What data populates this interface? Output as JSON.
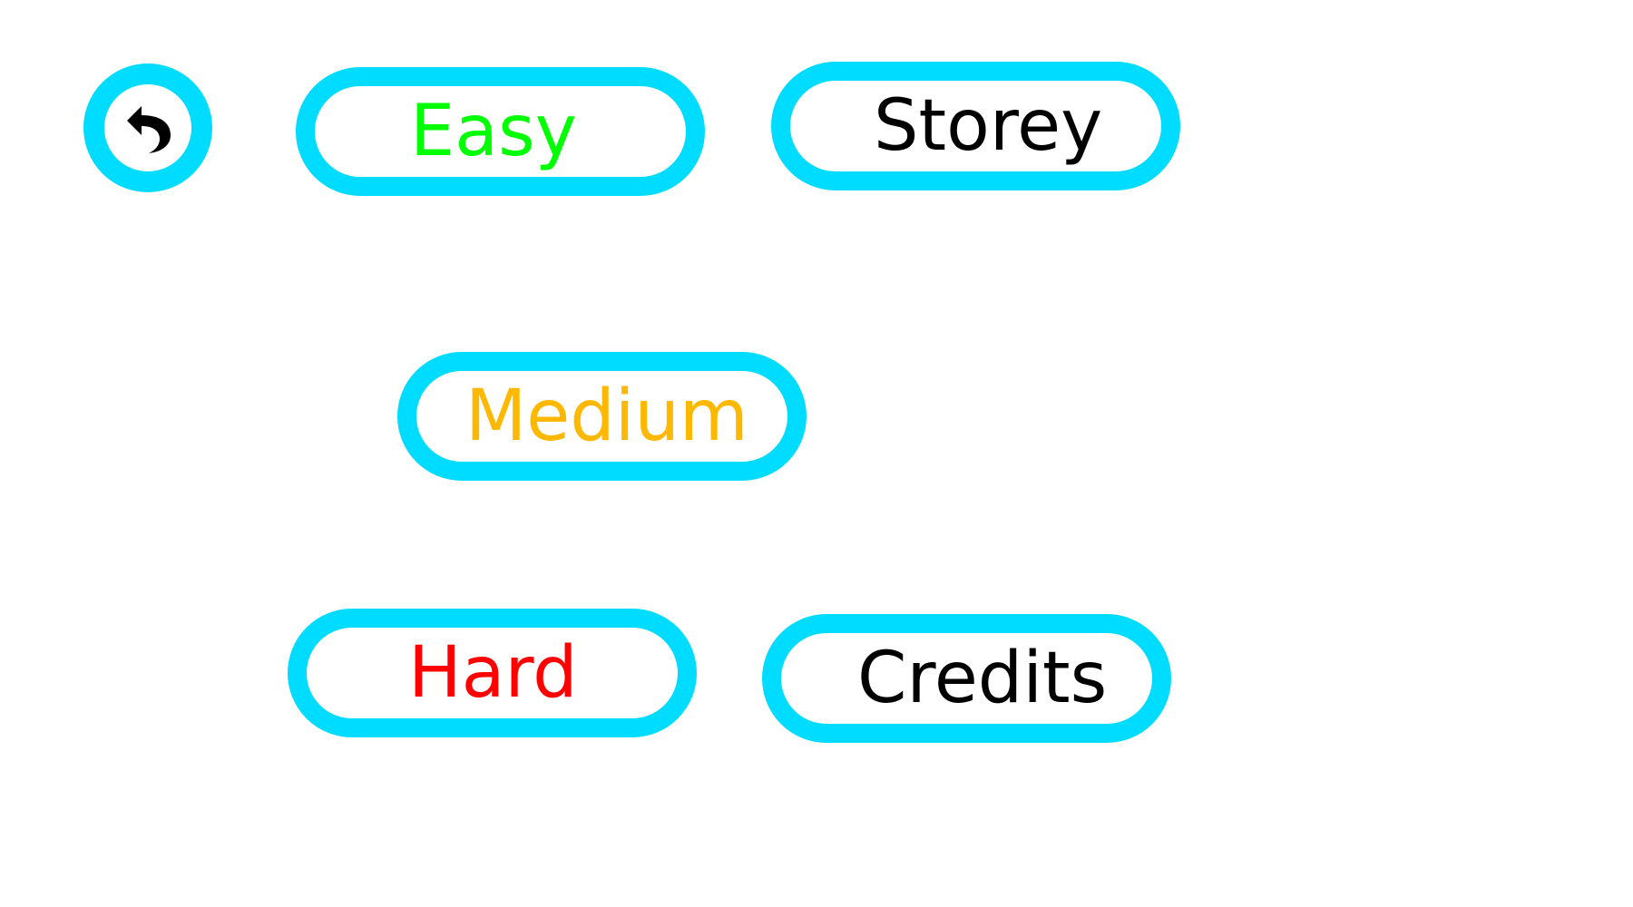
{
  "menu": {
    "back": {
      "icon": "undo-arrow-icon"
    },
    "buttons": {
      "easy": {
        "label": "Easy",
        "color": "#00ff00"
      },
      "story": {
        "label": "Storey",
        "color": "#000000"
      },
      "medium": {
        "label": "Medium",
        "color": "#ffb800"
      },
      "hard": {
        "label": "Hard",
        "color": "#ff0000"
      },
      "credits": {
        "label": "Credits",
        "color": "#000000"
      }
    },
    "accent": "#00dcff"
  }
}
